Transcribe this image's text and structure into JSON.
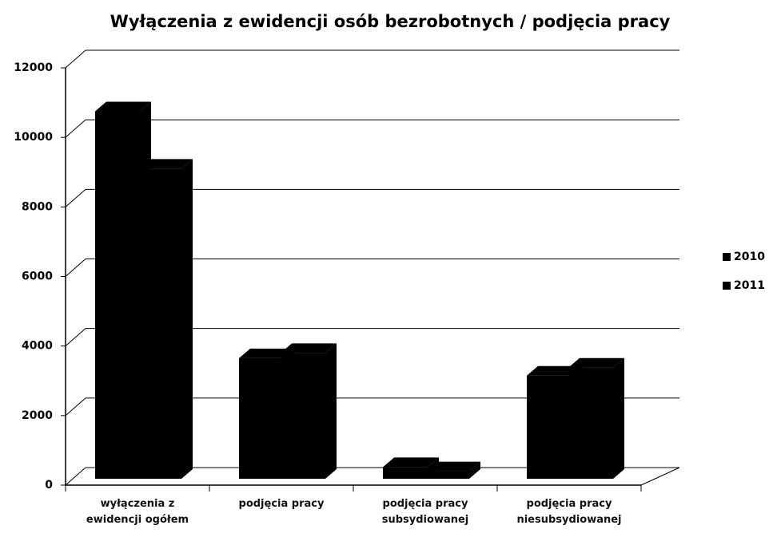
{
  "chart_data": {
    "type": "bar3d",
    "title": "Wyłączenia z ewidencji osób bezrobotnych / podjęcia pracy",
    "categories": [
      "wyłączenia z ewidencji ogółem",
      "podjęcia pracy",
      "podjęcia pracy subsydiowanej",
      "podjęcia pracy niesubsydiowanej"
    ],
    "series": [
      {
        "name": "2010",
        "color": "#000000",
        "values": [
          10750,
          3650,
          520,
          3150
        ]
      },
      {
        "name": "2011",
        "color": "#000000",
        "values": [
          9100,
          3800,
          400,
          3380
        ]
      }
    ],
    "ylim": [
      0,
      12000
    ],
    "yticks": [
      0,
      2000,
      4000,
      6000,
      8000,
      10000,
      12000
    ],
    "grid": true,
    "legend": "right"
  }
}
